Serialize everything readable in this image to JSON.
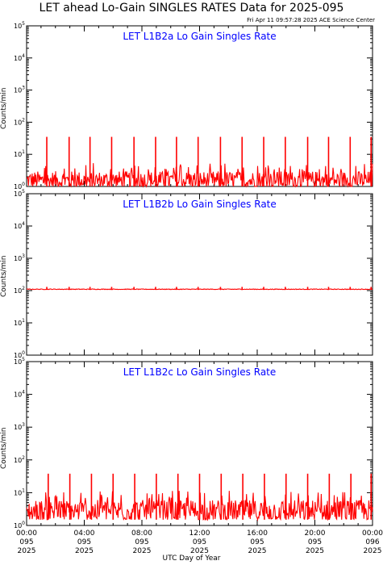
{
  "page": {
    "title": "LET ahead Lo-Gain SINGLES RATES Data for 2025-095",
    "timestamp": "Fri Apr 11 09:57:28 2025 ACE Science Center",
    "xlabel": "UTC Day of Year"
  },
  "colors": {
    "data_line": "#ff0000",
    "panel_title": "#0000ff",
    "axis": "#000000"
  },
  "chart_data": [
    {
      "type": "line",
      "title": "LET L1B2a Lo Gain Singles Rate",
      "ylabel": "Counts/min",
      "yscale": "log",
      "ylim": [
        1,
        100000
      ],
      "ytick_labels": [
        "10^0",
        "10^1",
        "10^2",
        "10^3",
        "10^4",
        "10^5"
      ],
      "xlim_hours": [
        0,
        24
      ],
      "baseline_range": [
        1,
        3
      ],
      "spike_value": 35,
      "spike_times_hours": [
        1.4,
        2.95,
        4.4,
        5.9,
        7.45,
        8.95,
        10.4,
        11.9,
        13.45,
        14.95,
        16.45,
        17.95,
        19.5,
        20.95,
        22.45,
        23.9
      ]
    },
    {
      "type": "line",
      "title": "LET L1B2b Lo Gain Singles Rate",
      "ylabel": "Counts/min",
      "yscale": "log",
      "ylim": [
        1,
        100000
      ],
      "ytick_labels": [
        "10^0",
        "10^1",
        "10^2",
        "10^3",
        "10^4",
        "10^5"
      ],
      "xlim_hours": [
        0,
        24
      ],
      "baseline_range": [
        105,
        115
      ],
      "spike_value": 130,
      "spike_times_hours": [
        1.4,
        2.95,
        4.4,
        5.9,
        7.45,
        8.95,
        10.4,
        11.9,
        13.45,
        14.95,
        16.45,
        17.95,
        19.5,
        20.95,
        22.45,
        23.9
      ]
    },
    {
      "type": "line",
      "title": "LET L1B2c Lo Gain Singles Rate",
      "ylabel": "Counts/min",
      "yscale": "log",
      "ylim": [
        1,
        100000
      ],
      "ytick_labels": [
        "10^0",
        "10^1",
        "10^2",
        "10^3",
        "10^4",
        "10^5"
      ],
      "xlim_hours": [
        0,
        24
      ],
      "baseline_range": [
        1.5,
        6
      ],
      "spike_value": 38,
      "spike_times_hours": [
        1.5,
        3.0,
        4.5,
        6.0,
        7.5,
        9.0,
        10.5,
        12.0,
        13.5,
        15.0,
        16.5,
        18.0,
        19.5,
        21.0,
        22.5,
        23.9
      ]
    }
  ],
  "x_axis": {
    "ticks": [
      {
        "time": "00:00",
        "day": "095",
        "year": "2025",
        "hour": 0
      },
      {
        "time": "04:00",
        "day": "095",
        "year": "2025",
        "hour": 4
      },
      {
        "time": "08:00",
        "day": "095",
        "year": "2025",
        "hour": 8
      },
      {
        "time": "12:00",
        "day": "095",
        "year": "2025",
        "hour": 12
      },
      {
        "time": "16:00",
        "day": "095",
        "year": "2025",
        "hour": 16
      },
      {
        "time": "20:00",
        "day": "095",
        "year": "2025",
        "hour": 20
      },
      {
        "time": "00:00",
        "day": "096",
        "year": "2025",
        "hour": 24
      }
    ]
  }
}
